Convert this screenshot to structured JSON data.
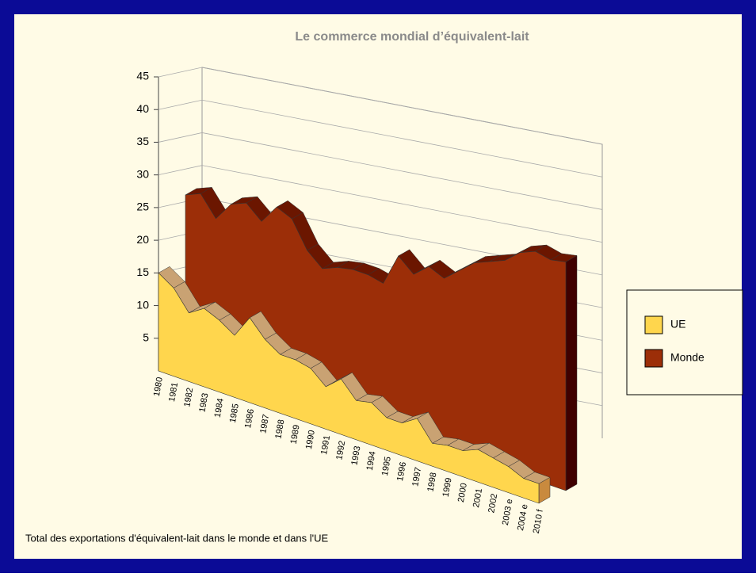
{
  "chart_data": {
    "type": "area3d",
    "title": "Le commerce mondial d’équivalent-lait",
    "footnote": "Total des exportations d'équivalent-lait dans le monde et dans l'UE",
    "categories": [
      "1980",
      "1981",
      "1982",
      "1983",
      "1984",
      "1985",
      "1986",
      "1987",
      "1988",
      "1989",
      "1990",
      "1991",
      "1992",
      "1993",
      "1994",
      "1995",
      "1996",
      "1997",
      "1998",
      "1999",
      "2000",
      "2001",
      "2002",
      "2003 e",
      "2004 e",
      "2010 f"
    ],
    "series": [
      {
        "name": "UE",
        "color": "#ffd64d",
        "top_color": "#c9a273",
        "values": [
          15,
          13.5,
          10.5,
          12,
          11,
          9.5,
          13,
          10.5,
          9,
          9,
          8.5,
          6.5,
          8.5,
          6,
          6.5,
          5,
          5,
          6.5,
          3.5,
          4,
          4,
          5,
          4.5,
          4,
          3,
          3
        ]
      },
      {
        "name": "Monde",
        "color": "#9c2e08",
        "top_color": "#6b1600",
        "values": [
          25,
          26,
          23,
          26,
          27,
          25,
          28,
          27,
          23,
          21,
          22,
          22.5,
          22.5,
          22,
          27,
          25,
          27,
          26,
          28,
          30,
          31,
          32,
          34,
          35,
          34.5,
          35
        ]
      }
    ],
    "ylim": [
      0,
      45
    ],
    "yticks": [
      5,
      10,
      15,
      20,
      25,
      30,
      35,
      40,
      45
    ],
    "grid": true,
    "legend": "right"
  }
}
